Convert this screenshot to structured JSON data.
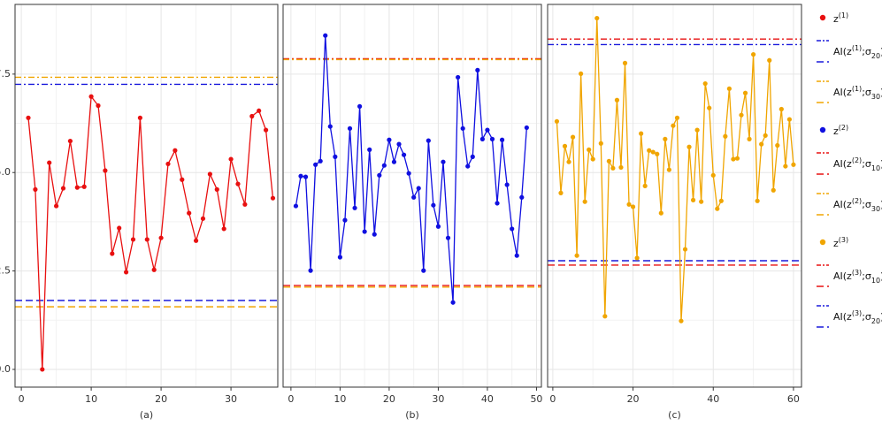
{
  "chart_data": [
    {
      "type": "line",
      "xlabel": "(a)",
      "x": [
        1,
        2,
        3,
        4,
        5,
        6,
        7,
        8,
        9,
        10,
        11,
        12,
        13,
        14,
        15,
        16,
        17,
        18,
        19,
        20,
        21,
        22,
        23,
        24,
        25,
        26,
        27,
        28,
        29,
        30,
        31,
        32,
        33,
        34,
        35,
        36
      ],
      "xlim": [
        -0.9,
        36.7
      ],
      "ylim": [
        -0.45,
        9.27
      ],
      "xticks": [
        0,
        10,
        20,
        30
      ],
      "yticks": [
        {
          "value": 0,
          "label": "0.0"
        },
        2.5,
        {
          "value": 5,
          "label": "5.0"
        },
        7.5
      ],
      "grid": true,
      "series": [
        {
          "name": [
            {
              "text": "z"
            },
            {
              "text": "(1)",
              "pos": "sup"
            }
          ],
          "color": "#e81010",
          "values": [
            6.39,
            4.57,
            0.0,
            5.25,
            4.15,
            4.6,
            5.8,
            4.62,
            4.64,
            6.93,
            6.7,
            5.05,
            2.94,
            3.59,
            2.47,
            3.3,
            6.39,
            3.3,
            2.53,
            3.34,
            5.22,
            5.56,
            4.82,
            3.97,
            3.27,
            3.83,
            4.96,
            4.57,
            3.57,
            5.34,
            4.71,
            4.19,
            6.43,
            6.57,
            6.08,
            4.35
          ]
        }
      ],
      "bounds": [
        {
          "name": [
            {
              "text": "AI(z"
            },
            {
              "text": "(1)",
              "pos": "sup"
            },
            {
              "text": ";σ"
            },
            {
              "text": "20",
              "pos": "sub"
            },
            {
              "text": ")"
            }
          ],
          "color": "#1a1adc",
          "upper": 7.24,
          "lower": 1.75
        },
        {
          "name": [
            {
              "text": "AI(z"
            },
            {
              "text": "(1)",
              "pos": "sup"
            },
            {
              "text": ";σ"
            },
            {
              "text": "30",
              "pos": "sub"
            },
            {
              "text": ")"
            }
          ],
          "color": "#f0a500",
          "upper": 7.42,
          "lower": 1.59
        }
      ]
    },
    {
      "type": "line",
      "xlabel": "(b)",
      "x": [
        1,
        2,
        3,
        4,
        5,
        6,
        7,
        8,
        9,
        10,
        11,
        12,
        13,
        14,
        15,
        16,
        17,
        18,
        19,
        20,
        21,
        22,
        23,
        24,
        25,
        26,
        27,
        28,
        29,
        30,
        31,
        32,
        33,
        34,
        35,
        36,
        37,
        38,
        39,
        40,
        41,
        42,
        43,
        44,
        45,
        46,
        47,
        48
      ],
      "xlim": [
        -1.6,
        51
      ],
      "ylim": [
        -0.45,
        9.27
      ],
      "xticks": [
        0,
        10,
        20,
        30,
        40,
        50
      ],
      "sharey": true,
      "grid": true,
      "series": [
        {
          "name": [
            {
              "text": "z"
            },
            {
              "text": "(2)",
              "pos": "sup"
            }
          ],
          "color": "#1010e0",
          "values": [
            4.15,
            4.91,
            4.89,
            2.51,
            5.2,
            5.29,
            8.48,
            6.17,
            5.4,
            2.85,
            3.79,
            6.12,
            4.1,
            6.68,
            3.5,
            5.58,
            3.43,
            4.93,
            5.18,
            5.83,
            5.27,
            5.72,
            5.45,
            4.98,
            4.37,
            4.6,
            2.51,
            5.81,
            4.17,
            3.63,
            5.27,
            3.34,
            1.7,
            7.42,
            6.12,
            5.16,
            5.4,
            7.6,
            5.85,
            6.08,
            5.85,
            4.22,
            5.83,
            4.69,
            3.57,
            2.89,
            4.37,
            6.14
          ]
        }
      ],
      "bounds": [
        {
          "name": [
            {
              "text": "AI(z"
            },
            {
              "text": "(2)",
              "pos": "sup"
            },
            {
              "text": ";σ"
            },
            {
              "text": "10",
              "pos": "sub"
            },
            {
              "text": ")"
            }
          ],
          "color": "#e81010",
          "upper": 7.89,
          "lower": 2.13
        },
        {
          "name": [
            {
              "text": "AI(z"
            },
            {
              "text": "(2)",
              "pos": "sup"
            },
            {
              "text": ";σ"
            },
            {
              "text": "30",
              "pos": "sub"
            },
            {
              "text": ")"
            }
          ],
          "color": "#f0a500",
          "upper": 7.87,
          "lower": 2.09
        }
      ]
    },
    {
      "type": "line",
      "xlabel": "(c)",
      "x": [
        1,
        2,
        3,
        4,
        5,
        6,
        7,
        8,
        9,
        10,
        11,
        12,
        13,
        14,
        15,
        16,
        17,
        18,
        19,
        20,
        21,
        22,
        23,
        24,
        25,
        26,
        27,
        28,
        29,
        30,
        31,
        32,
        33,
        34,
        35,
        36,
        37,
        38,
        39,
        40,
        41,
        42,
        43,
        44,
        45,
        46,
        47,
        48,
        49,
        50,
        51,
        52,
        53,
        54,
        55,
        56,
        57,
        58,
        59,
        60
      ],
      "xlim": [
        -1.3,
        62
      ],
      "ylim": [
        -0.45,
        9.27
      ],
      "xticks": [
        0,
        20,
        40,
        60
      ],
      "sharey": true,
      "grid": true,
      "series": [
        {
          "name": [
            {
              "text": "z"
            },
            {
              "text": "(3)",
              "pos": "sup"
            }
          ],
          "color": "#f0a500",
          "values": [
            6.3,
            4.48,
            5.67,
            5.27,
            5.9,
            2.89,
            7.51,
            4.26,
            5.58,
            5.34,
            8.92,
            5.74,
            1.35,
            5.29,
            5.11,
            6.84,
            5.13,
            7.78,
            4.19,
            4.13,
            2.83,
            5.99,
            4.66,
            5.56,
            5.52,
            5.47,
            3.97,
            5.85,
            5.07,
            6.19,
            6.39,
            1.23,
            3.05,
            5.65,
            4.3,
            6.08,
            4.26,
            7.26,
            6.64,
            4.93,
            4.08,
            4.28,
            5.92,
            7.13,
            5.34,
            5.36,
            6.46,
            7.02,
            5.85,
            8.0,
            4.28,
            5.72,
            5.94,
            7.85,
            4.55,
            5.69,
            6.61,
            5.16,
            6.35,
            5.2
          ]
        }
      ],
      "bounds": [
        {
          "name": [
            {
              "text": "AI(z"
            },
            {
              "text": "(3)",
              "pos": "sup"
            },
            {
              "text": ";σ"
            },
            {
              "text": "10",
              "pos": "sub"
            },
            {
              "text": ")"
            }
          ],
          "color": "#e81010",
          "upper": 8.39,
          "lower": 2.65
        },
        {
          "name": [
            {
              "text": "AI(z"
            },
            {
              "text": "(3)",
              "pos": "sup"
            },
            {
              "text": ";σ"
            },
            {
              "text": "20",
              "pos": "sub"
            },
            {
              "text": ")"
            }
          ],
          "color": "#1a1adc",
          "upper": 8.25,
          "lower": 2.76
        }
      ]
    }
  ]
}
